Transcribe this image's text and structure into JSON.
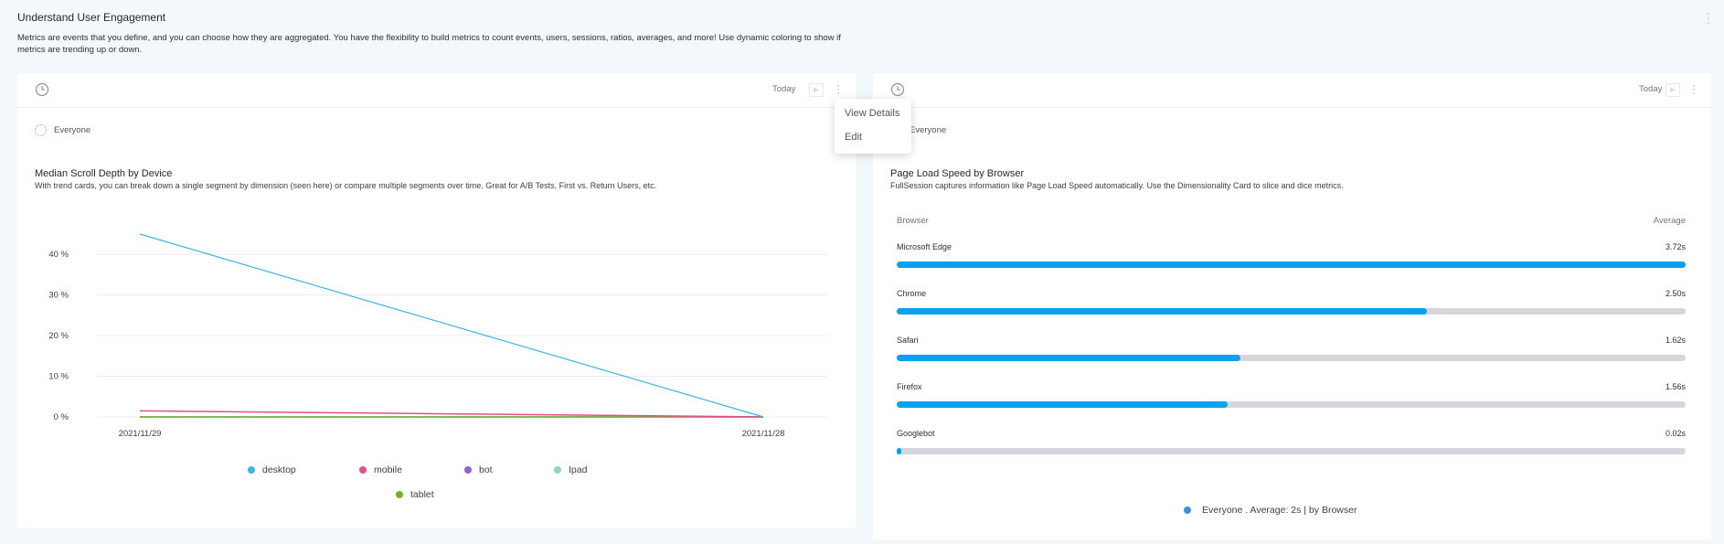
{
  "header": {
    "title": "Understand User Engagement",
    "description": "Metrics are events that you define, and you can choose how they are aggregated. You have the flexibility to build metrics to count events, users, sessions, ratios, averages, and more! Use dynamic coloring to show if metrics are trending up or down."
  },
  "left_card": {
    "date_range": "Today",
    "segment": "Everyone",
    "title": "Median Scroll Depth by Device",
    "description": "With trend cards, you can break down a single segment by dimension (seen here) or compare multiple segments over time. Great for A/B Tests, First vs. Return Users, etc."
  },
  "right_card": {
    "date_range": "Today",
    "segment": "Everyone",
    "title": "Page Load Speed by Browser",
    "description": "FullSession captures information like Page Load Speed automatically. Use the Dimensionality Card to slice and dice metrics.",
    "col_left": "Browser",
    "col_right": "Average",
    "summary": "Everyone . Average: 2s | by Browser"
  },
  "menu": {
    "view_details": "View Details",
    "edit": "Edit"
  },
  "colors": {
    "desktop": "#3cb5e9",
    "mobile": "#e44f86",
    "bot": "#8f63d2",
    "ipad": "#8ed8bd",
    "tablet": "#6fb52a",
    "bar": "#0aa1ef",
    "track": "#d4d7dc",
    "summary": "#3a8fe0"
  },
  "chart_data": [
    {
      "type": "line",
      "title": "Median Scroll Depth by Device",
      "x": [
        "2021/11/29",
        "2021/11/28"
      ],
      "y_ticks": [
        "0 %",
        "10 %",
        "20 %",
        "30 %",
        "40 %"
      ],
      "ylim": [
        0,
        45
      ],
      "grid": true,
      "legend_position": "bottom",
      "series": [
        {
          "name": "desktop",
          "values": [
            45,
            0
          ]
        },
        {
          "name": "mobile",
          "values": [
            1.5,
            0
          ]
        },
        {
          "name": "bot",
          "values": [
            0,
            0
          ]
        },
        {
          "name": "Ipad",
          "values": [
            0,
            0
          ]
        },
        {
          "name": "tablet",
          "values": [
            0,
            0
          ]
        }
      ]
    },
    {
      "type": "bar",
      "title": "Page Load Speed by Browser",
      "categories": [
        "Microsoft Edge",
        "Chrome",
        "Safari",
        "Firefox",
        "Googlebot"
      ],
      "values": [
        3.72,
        2.5,
        1.62,
        1.56,
        0.02
      ],
      "labels": [
        "3.72s",
        "2.50s",
        "1.62s",
        "1.56s",
        "0.02s"
      ],
      "max": 3.72
    }
  ]
}
